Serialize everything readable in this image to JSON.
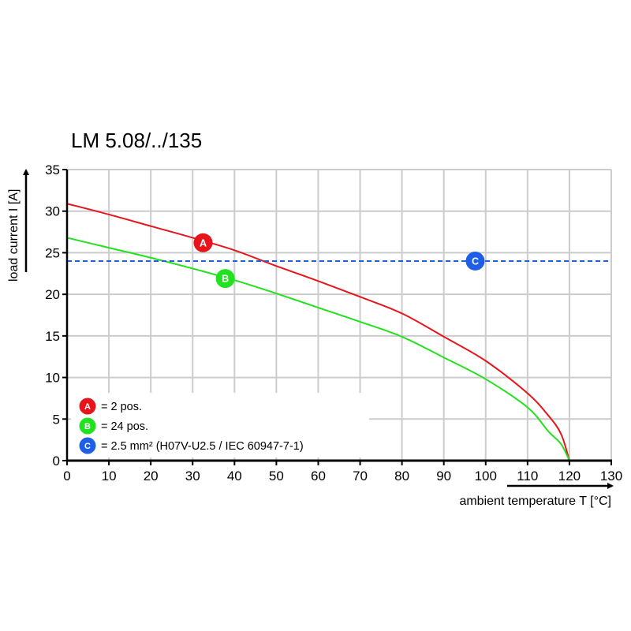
{
  "chart_data": {
    "type": "line",
    "title": "LM 5.08/../135",
    "xlabel": "ambient temperature T [°C]",
    "ylabel": "load current I [A]",
    "xlim": [
      0,
      130
    ],
    "ylim": [
      0,
      35
    ],
    "x_ticks": [
      0,
      10,
      20,
      30,
      40,
      50,
      60,
      70,
      80,
      90,
      100,
      110,
      120,
      130
    ],
    "y_ticks": [
      0,
      5,
      10,
      15,
      20,
      25,
      30,
      35
    ],
    "grid": true,
    "legend_position": "bottom-left",
    "series": [
      {
        "key": "A",
        "color": "#e8141c",
        "x": [
          0,
          10,
          20,
          30,
          40,
          50,
          60,
          70,
          80,
          90,
          100,
          110,
          115,
          118,
          120
        ],
        "y": [
          30.9,
          29.6,
          28.2,
          26.8,
          25.3,
          23.4,
          21.6,
          19.7,
          17.7,
          14.9,
          12.0,
          8.1,
          5.4,
          3.2,
          0
        ]
      },
      {
        "key": "B",
        "color": "#22e11e",
        "x": [
          0,
          10,
          20,
          30,
          40,
          50,
          60,
          70,
          80,
          90,
          100,
          110,
          115,
          118,
          120
        ],
        "y": [
          26.8,
          25.6,
          24.4,
          23.1,
          21.7,
          20.1,
          18.4,
          16.7,
          14.9,
          12.4,
          9.8,
          6.4,
          3.5,
          2.0,
          0
        ]
      },
      {
        "key": "C",
        "color": "#1f5fe8",
        "style": "dashed",
        "x": [
          0,
          130
        ],
        "y": [
          24,
          24
        ]
      }
    ],
    "annotations": [
      {
        "label": "A",
        "color": "#e8141c",
        "x": 32.5,
        "y": 26.2
      },
      {
        "label": "B",
        "color": "#22e11e",
        "x": 37.8,
        "y": 21.9
      },
      {
        "label": "C",
        "color": "#1f5fe8",
        "x": 97.5,
        "y": 24
      }
    ],
    "legend": [
      {
        "label": "A",
        "text": "= 2 pos.",
        "color": "#e8141c"
      },
      {
        "label": "B",
        "text": "= 24 pos.",
        "color": "#22e11e"
      },
      {
        "label": "C",
        "text": "= 2.5 mm² (H07V-U2.5 / IEC 60947-7-1)",
        "color": "#1f5fe8"
      }
    ]
  }
}
